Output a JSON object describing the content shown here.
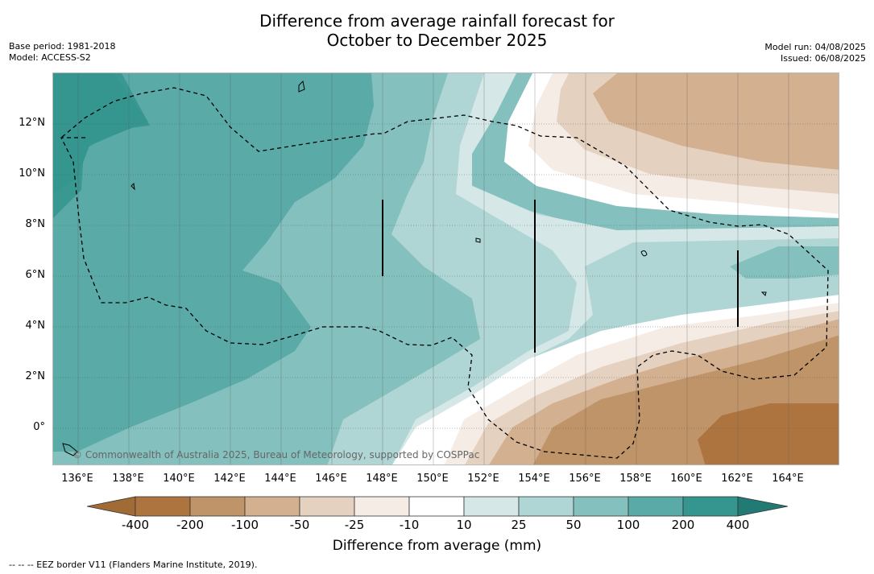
{
  "title_line1": "Difference from average rainfall forecast for",
  "title_line2": "October to December 2025",
  "left_meta": {
    "base_period": "Base period: 1981-2018",
    "model": "Model: ACCESS-S2"
  },
  "right_meta": {
    "model_run": "Model run: 04/08/2025",
    "issued": "Issued: 06/08/2025"
  },
  "copyright": "© Commonwealth of Australia 2025, Bureau of Meteorology, supported by COSPPac",
  "latitudes": [
    "12°N",
    "10°N",
    "8°N",
    "6°N",
    "4°N",
    "2°N",
    "0°"
  ],
  "longitudes": [
    "136°E",
    "138°E",
    "140°E",
    "142°E",
    "144°E",
    "146°E",
    "148°E",
    "150°E",
    "152°E",
    "154°E",
    "156°E",
    "158°E",
    "160°E",
    "162°E",
    "164°E"
  ],
  "legend": {
    "title": "Difference from average (mm)",
    "ticks": [
      "-400",
      "-200",
      "-100",
      "-50",
      "-25",
      "-10",
      "10",
      "25",
      "50",
      "100",
      "200",
      "400"
    ],
    "colors": {
      "below_400": "#a06b35",
      "m400_m200": "#ad7440",
      "m200_m100": "#bf9468",
      "m100_m50": "#d2b090",
      "m50_m25": "#e5d1bf",
      "m25_m10": "#f5ece6",
      "m10_10": "#ffffff",
      "10_25": "#d5e8e7",
      "25_50": "#afd6d4",
      "50_100": "#84c0bd",
      "100_200": "#5aaaa8",
      "200_400": "#35968f",
      "above_400": "#217a74"
    }
  },
  "footer": "-- -- -- EEZ border V11 (Flanders Marine Institute, 2019)."
}
